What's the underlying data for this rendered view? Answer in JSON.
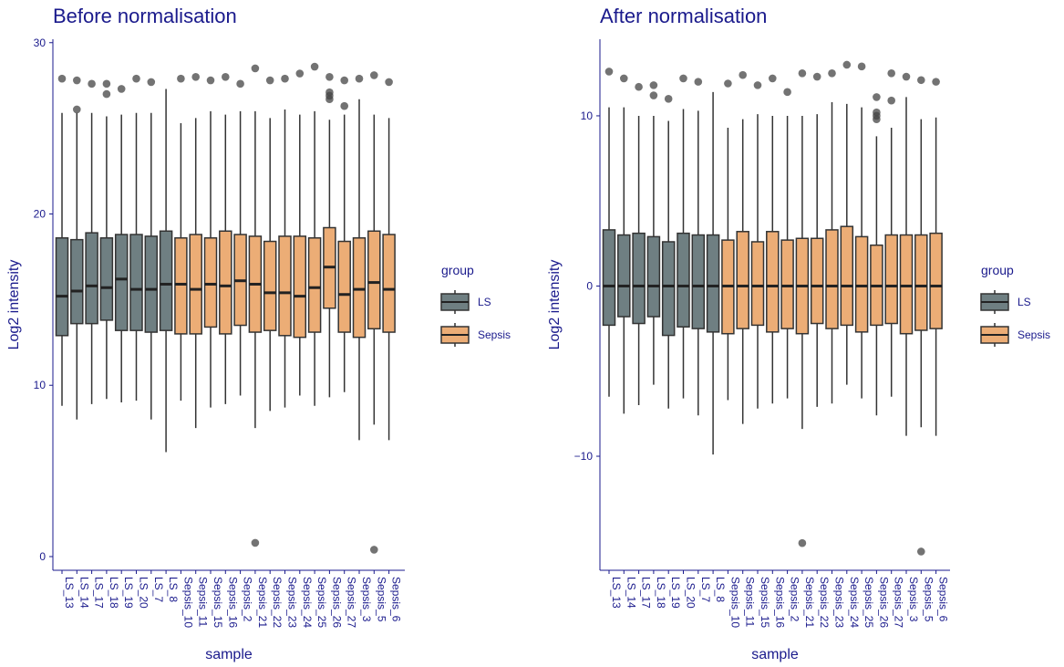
{
  "samples": [
    "LS_13",
    "LS_14",
    "LS_17",
    "LS_18",
    "LS_19",
    "LS_20",
    "LS_7",
    "LS_8",
    "Sepsis_10",
    "Sepsis_11",
    "Sepsis_15",
    "Sepsis_16",
    "Sepsis_2",
    "Sepsis_21",
    "Sepsis_22",
    "Sepsis_23",
    "Sepsis_24",
    "Sepsis_25",
    "Sepsis_26",
    "Sepsis_27",
    "Sepsis_3",
    "Sepsis_5",
    "Sepsis_6"
  ],
  "legend": {
    "title": "group",
    "items": [
      {
        "label": "LS",
        "color": "#6f7f82"
      },
      {
        "label": "Sepsis",
        "color": "#ecad76"
      }
    ]
  },
  "chart_data": [
    {
      "type": "boxplot",
      "title": "Before normalisation",
      "xlabel": "sample",
      "ylabel": "Log2 intensity",
      "ylim": [
        -0.8,
        30.2
      ],
      "yticks": [
        0,
        10,
        20,
        30
      ],
      "categories": [
        "LS_13",
        "LS_14",
        "LS_17",
        "LS_18",
        "LS_19",
        "LS_20",
        "LS_7",
        "LS_8",
        "Sepsis_10",
        "Sepsis_11",
        "Sepsis_15",
        "Sepsis_16",
        "Sepsis_2",
        "Sepsis_21",
        "Sepsis_22",
        "Sepsis_23",
        "Sepsis_24",
        "Sepsis_25",
        "Sepsis_26",
        "Sepsis_27",
        "Sepsis_3",
        "Sepsis_5",
        "Sepsis_6"
      ],
      "groups": [
        "LS",
        "LS",
        "LS",
        "LS",
        "LS",
        "LS",
        "LS",
        "LS",
        "Sepsis",
        "Sepsis",
        "Sepsis",
        "Sepsis",
        "Sepsis",
        "Sepsis",
        "Sepsis",
        "Sepsis",
        "Sepsis",
        "Sepsis",
        "Sepsis",
        "Sepsis",
        "Sepsis",
        "Sepsis",
        "Sepsis"
      ],
      "boxes": [
        {
          "low": 8.8,
          "q1": 12.9,
          "median": 15.2,
          "q3": 18.6,
          "high": 25.9,
          "outliers": [
            27.9
          ]
        },
        {
          "low": 8.0,
          "q1": 13.6,
          "median": 15.5,
          "q3": 18.5,
          "high": 25.9,
          "outliers": [
            27.8,
            26.1
          ]
        },
        {
          "low": 8.9,
          "q1": 13.6,
          "median": 15.8,
          "q3": 18.9,
          "high": 25.9,
          "outliers": [
            27.6
          ]
        },
        {
          "low": 9.2,
          "q1": 13.8,
          "median": 15.7,
          "q3": 18.6,
          "high": 25.7,
          "outliers": [
            27.6,
            27.0
          ]
        },
        {
          "low": 9.0,
          "q1": 13.2,
          "median": 16.2,
          "q3": 18.8,
          "high": 25.8,
          "outliers": [
            27.3
          ]
        },
        {
          "low": 9.1,
          "q1": 13.2,
          "median": 15.6,
          "q3": 18.8,
          "high": 25.9,
          "outliers": [
            27.9
          ]
        },
        {
          "low": 8.0,
          "q1": 13.1,
          "median": 15.6,
          "q3": 18.7,
          "high": 25.9,
          "outliers": [
            27.7
          ]
        },
        {
          "low": 6.1,
          "q1": 13.2,
          "median": 15.9,
          "q3": 19.0,
          "high": 27.3,
          "outliers": []
        },
        {
          "low": 9.1,
          "q1": 13.0,
          "median": 15.9,
          "q3": 18.6,
          "high": 25.3,
          "outliers": [
            27.9
          ]
        },
        {
          "low": 7.5,
          "q1": 13.0,
          "median": 15.6,
          "q3": 18.8,
          "high": 25.6,
          "outliers": [
            28.0
          ]
        },
        {
          "low": 8.7,
          "q1": 13.4,
          "median": 15.9,
          "q3": 18.6,
          "high": 26.0,
          "outliers": [
            27.8
          ]
        },
        {
          "low": 8.9,
          "q1": 13.0,
          "median": 15.8,
          "q3": 19.0,
          "high": 25.8,
          "outliers": [
            28.0
          ]
        },
        {
          "low": 9.4,
          "q1": 13.5,
          "median": 16.1,
          "q3": 18.8,
          "high": 26.0,
          "outliers": [
            27.6
          ]
        },
        {
          "low": 7.5,
          "q1": 13.1,
          "median": 15.9,
          "q3": 18.7,
          "high": 26.0,
          "outliers": [
            28.5,
            0.8
          ]
        },
        {
          "low": 8.5,
          "q1": 13.2,
          "median": 15.4,
          "q3": 18.4,
          "high": 25.6,
          "outliers": [
            27.8
          ]
        },
        {
          "low": 8.7,
          "q1": 12.9,
          "median": 15.4,
          "q3": 18.7,
          "high": 26.1,
          "outliers": [
            27.9
          ]
        },
        {
          "low": 9.4,
          "q1": 12.8,
          "median": 15.2,
          "q3": 18.7,
          "high": 25.8,
          "outliers": [
            28.2
          ]
        },
        {
          "low": 8.8,
          "q1": 13.1,
          "median": 15.7,
          "q3": 18.6,
          "high": 26.0,
          "outliers": [
            28.6
          ]
        },
        {
          "low": 9.3,
          "q1": 14.5,
          "median": 16.9,
          "q3": 19.2,
          "high": 25.5,
          "outliers": [
            28.0,
            27.1,
            26.9,
            26.7
          ]
        },
        {
          "low": 9.6,
          "q1": 13.1,
          "median": 15.3,
          "q3": 18.4,
          "high": 25.8,
          "outliers": [
            27.8,
            26.3
          ]
        },
        {
          "low": 6.8,
          "q1": 12.8,
          "median": 15.6,
          "q3": 18.6,
          "high": 26.7,
          "outliers": [
            27.9
          ]
        },
        {
          "low": 7.7,
          "q1": 13.3,
          "median": 16.0,
          "q3": 19.0,
          "high": 25.8,
          "outliers": [
            28.1,
            0.4
          ]
        },
        {
          "low": 6.8,
          "q1": 13.1,
          "median": 15.6,
          "q3": 18.8,
          "high": 25.6,
          "outliers": [
            27.7
          ]
        }
      ]
    },
    {
      "type": "boxplot",
      "title": "After normalisation",
      "xlabel": "sample",
      "ylabel": "Log2 intensity",
      "ylim": [
        -16.7,
        14.5
      ],
      "yticks": [
        -10,
        0,
        10
      ],
      "categories": [
        "LS_13",
        "LS_14",
        "LS_17",
        "LS_18",
        "LS_19",
        "LS_20",
        "LS_7",
        "LS_8",
        "Sepsis_10",
        "Sepsis_11",
        "Sepsis_15",
        "Sepsis_16",
        "Sepsis_2",
        "Sepsis_21",
        "Sepsis_22",
        "Sepsis_23",
        "Sepsis_24",
        "Sepsis_25",
        "Sepsis_26",
        "Sepsis_27",
        "Sepsis_3",
        "Sepsis_5",
        "Sepsis_6"
      ],
      "groups": [
        "LS",
        "LS",
        "LS",
        "LS",
        "LS",
        "LS",
        "LS",
        "LS",
        "Sepsis",
        "Sepsis",
        "Sepsis",
        "Sepsis",
        "Sepsis",
        "Sepsis",
        "Sepsis",
        "Sepsis",
        "Sepsis",
        "Sepsis",
        "Sepsis",
        "Sepsis",
        "Sepsis",
        "Sepsis",
        "Sepsis"
      ],
      "boxes": [
        {
          "low": -6.5,
          "q1": -2.3,
          "median": 0,
          "q3": 3.3,
          "high": 10.5,
          "outliers": [
            12.6
          ]
        },
        {
          "low": -7.5,
          "q1": -1.8,
          "median": 0,
          "q3": 3.0,
          "high": 10.5,
          "outliers": [
            12.2
          ]
        },
        {
          "low": -7.0,
          "q1": -2.2,
          "median": 0,
          "q3": 3.1,
          "high": 10.0,
          "outliers": [
            11.7
          ]
        },
        {
          "low": -5.8,
          "q1": -1.8,
          "median": 0,
          "q3": 2.9,
          "high": 10.0,
          "outliers": [
            11.8,
            11.2
          ]
        },
        {
          "low": -7.2,
          "q1": -2.9,
          "median": 0,
          "q3": 2.6,
          "high": 9.7,
          "outliers": [
            11.0
          ]
        },
        {
          "low": -6.6,
          "q1": -2.4,
          "median": 0,
          "q3": 3.1,
          "high": 10.4,
          "outliers": [
            12.2
          ]
        },
        {
          "low": -7.6,
          "q1": -2.5,
          "median": 0,
          "q3": 3.0,
          "high": 10.3,
          "outliers": [
            12.0
          ]
        },
        {
          "low": -9.9,
          "q1": -2.7,
          "median": 0,
          "q3": 3.0,
          "high": 11.4,
          "outliers": []
        },
        {
          "low": -6.7,
          "q1": -2.8,
          "median": 0,
          "q3": 2.7,
          "high": 9.3,
          "outliers": [
            11.9
          ]
        },
        {
          "low": -8.1,
          "q1": -2.5,
          "median": 0,
          "q3": 3.2,
          "high": 9.8,
          "outliers": [
            12.4
          ]
        },
        {
          "low": -7.2,
          "q1": -2.3,
          "median": 0,
          "q3": 2.6,
          "high": 10.1,
          "outliers": [
            11.8
          ]
        },
        {
          "low": -6.9,
          "q1": -2.7,
          "median": 0,
          "q3": 3.2,
          "high": 10.0,
          "outliers": [
            12.2
          ]
        },
        {
          "low": -6.6,
          "q1": -2.5,
          "median": 0,
          "q3": 2.7,
          "high": 10.0,
          "outliers": [
            11.4
          ]
        },
        {
          "low": -8.4,
          "q1": -2.8,
          "median": 0,
          "q3": 2.8,
          "high": 10.0,
          "outliers": [
            12.5,
            -15.1
          ]
        },
        {
          "low": -7.1,
          "q1": -2.2,
          "median": 0,
          "q3": 2.8,
          "high": 10.1,
          "outliers": [
            12.3
          ]
        },
        {
          "low": -6.9,
          "q1": -2.5,
          "median": 0,
          "q3": 3.3,
          "high": 10.8,
          "outliers": [
            12.5
          ]
        },
        {
          "low": -5.8,
          "q1": -2.3,
          "median": 0,
          "q3": 3.5,
          "high": 10.7,
          "outliers": [
            13.0
          ]
        },
        {
          "low": -6.6,
          "q1": -2.7,
          "median": 0,
          "q3": 2.9,
          "high": 10.5,
          "outliers": [
            12.9
          ]
        },
        {
          "low": -7.6,
          "q1": -2.3,
          "median": 0,
          "q3": 2.4,
          "high": 8.8,
          "outliers": [
            11.1,
            10.2,
            10.0,
            9.8
          ]
        },
        {
          "low": -6.5,
          "q1": -2.2,
          "median": 0,
          "q3": 3.0,
          "high": 9.3,
          "outliers": [
            12.5,
            10.9
          ]
        },
        {
          "low": -8.8,
          "q1": -2.8,
          "median": 0,
          "q3": 3.0,
          "high": 11.1,
          "outliers": [
            12.3
          ]
        },
        {
          "low": -8.3,
          "q1": -2.6,
          "median": 0,
          "q3": 3.0,
          "high": 9.8,
          "outliers": [
            12.1,
            -15.6
          ]
        },
        {
          "low": -8.8,
          "q1": -2.5,
          "median": 0,
          "q3": 3.1,
          "high": 9.9,
          "outliers": [
            12.0
          ]
        }
      ]
    }
  ]
}
